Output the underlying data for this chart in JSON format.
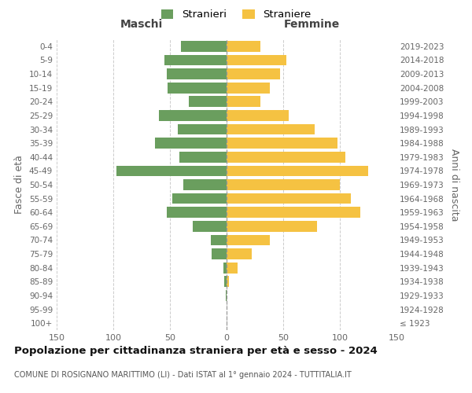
{
  "age_groups": [
    "100+",
    "95-99",
    "90-94",
    "85-89",
    "80-84",
    "75-79",
    "70-74",
    "65-69",
    "60-64",
    "55-59",
    "50-54",
    "45-49",
    "40-44",
    "35-39",
    "30-34",
    "25-29",
    "20-24",
    "15-19",
    "10-14",
    "5-9",
    "0-4"
  ],
  "birth_years": [
    "≤ 1923",
    "1924-1928",
    "1929-1933",
    "1934-1938",
    "1939-1943",
    "1944-1948",
    "1949-1953",
    "1954-1958",
    "1959-1963",
    "1964-1968",
    "1969-1973",
    "1974-1978",
    "1979-1983",
    "1984-1988",
    "1989-1993",
    "1994-1998",
    "1999-2003",
    "2004-2008",
    "2009-2013",
    "2014-2018",
    "2019-2023"
  ],
  "males": [
    0,
    0,
    1,
    2,
    3,
    13,
    14,
    30,
    53,
    48,
    38,
    97,
    42,
    63,
    43,
    60,
    33,
    52,
    53,
    55,
    40
  ],
  "females": [
    0,
    0,
    0,
    2,
    10,
    22,
    38,
    80,
    118,
    110,
    100,
    125,
    105,
    98,
    78,
    55,
    30,
    38,
    47,
    53,
    30
  ],
  "male_color": "#6a9e5e",
  "female_color": "#f5c242",
  "background_color": "#ffffff",
  "grid_color": "#cccccc",
  "title": "Popolazione per cittadinanza straniera per età e sesso - 2024",
  "subtitle": "COMUNE DI ROSIGNANO MARITTIMO (LI) - Dati ISTAT al 1° gennaio 2024 - TUTTITALIA.IT",
  "xlabel_left": "Maschi",
  "xlabel_right": "Femmine",
  "ylabel_left": "Fasce di età",
  "ylabel_right": "Anni di nascita",
  "legend_male": "Stranieri",
  "legend_female": "Straniere",
  "xlim": 150,
  "dpi": 100,
  "figsize": [
    6.0,
    5.0
  ]
}
